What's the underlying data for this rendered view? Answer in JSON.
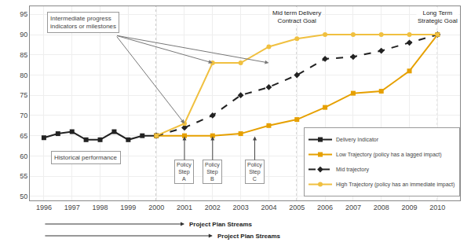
{
  "chart_data": {
    "type": "line",
    "xlim": [
      1995.5,
      2010.8
    ],
    "ylim": [
      49,
      97
    ],
    "xticks": [
      1996,
      1997,
      1998,
      1999,
      2000,
      2001,
      2002,
      2003,
      2004,
      2005,
      2006,
      2007,
      2008,
      2009,
      2010
    ],
    "yticks": [
      50,
      55,
      60,
      65,
      70,
      75,
      80,
      85,
      90,
      95
    ],
    "grid": true,
    "legend": "lower right",
    "series": [
      {
        "name": "Delivery Indicator",
        "color": "#222222",
        "line_style": "solid",
        "marker": "square",
        "x": [
          1996,
          1996.5,
          1997,
          1997.5,
          1998,
          1998.5,
          1999,
          1999.5,
          2000
        ],
        "values": [
          64.5,
          65.5,
          66,
          64,
          64,
          66,
          64,
          65,
          65
        ]
      },
      {
        "name": "Low Trajectory (policy has a lagged impact)",
        "color": "#e6a000",
        "line_style": "solid",
        "marker": "square",
        "x": [
          2000,
          2001,
          2002,
          2003,
          2004,
          2005,
          2006,
          2007,
          2008,
          2009,
          2010
        ],
        "values": [
          65,
          65,
          65,
          65.5,
          67.5,
          69,
          72,
          75.5,
          76,
          81,
          90
        ]
      },
      {
        "name": "Mid trajectory",
        "color": "#222222",
        "line_style": "dashed",
        "marker": "diamond",
        "x": [
          2000,
          2001,
          2002,
          2003,
          2004,
          2005,
          2006,
          2007,
          2008,
          2009,
          2010
        ],
        "values": [
          65,
          67,
          70,
          75,
          77,
          80,
          84,
          84.5,
          86,
          88,
          90
        ]
      },
      {
        "name": "High Trajectory (policy has an immediate impact)",
        "color": "#f0c040",
        "line_style": "solid",
        "marker": "circle",
        "x": [
          2000,
          2001,
          2002,
          2003,
          2004,
          2005,
          2006,
          2007,
          2008,
          2009,
          2010
        ],
        "values": [
          65,
          68,
          83,
          83,
          87,
          89,
          90,
          90,
          90,
          90,
          90
        ]
      }
    ],
    "vlines": [
      2000,
      2005,
      2010
    ],
    "milestones": {
      "x": [
        2001,
        2002,
        2004
      ],
      "y": [
        68,
        83,
        83
      ]
    },
    "milestone_label": "Intermediate progress\nindicators or milestones",
    "historical_label": "Historical performance",
    "goal_labels": [
      "Mid term Delivery\nContract Goal",
      "Long Term\nStrategic Goal"
    ],
    "policy_steps": [
      {
        "x": 2001,
        "label": "Policy\nStep\nA"
      },
      {
        "x": 2002,
        "label": "Policy\nStep\nB"
      },
      {
        "x": 2003.5,
        "label": "Policy\nStep\nC"
      }
    ],
    "project_plan": [
      {
        "label": "Project Plan Streams",
        "start": 1996,
        "end": 2001
      },
      {
        "label": "Project Plan Streams",
        "start": 1996,
        "end": 2002
      }
    ]
  }
}
